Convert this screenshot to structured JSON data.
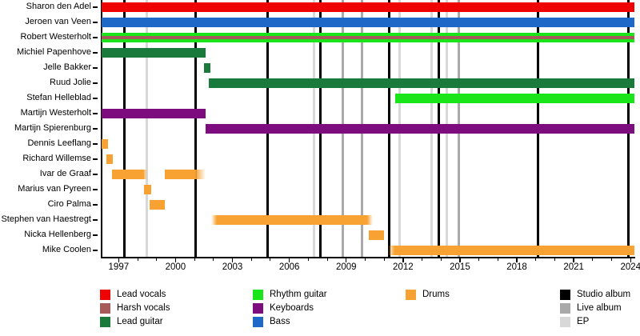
{
  "chart_data": {
    "type": "timeline",
    "description": "Band members timeline (gantt-style), members vs years with release markers",
    "x_axis": {
      "min": 1996.1,
      "max": 2024.2,
      "labeled_ticks": [
        1997,
        2000,
        2003,
        2006,
        2009,
        2012,
        2015,
        2018,
        2021,
        2024
      ],
      "minor_tick_every": 1
    },
    "role_colors": {
      "lead_vocals": "#EE0202",
      "harsh_vocals": "#A65A5A",
      "lead_guitar": "#1A7A3C",
      "rhythm_guitar": "#1AE51A",
      "keyboards": "#7D0C7E",
      "bass": "#1E68C8",
      "drums": "#F7A233"
    },
    "release_colors": {
      "studio": "#000000",
      "live": "#A9A9A9",
      "ep": "#D8D8D8"
    },
    "members": [
      {
        "name": "Sharon den Adel",
        "segments": [
          {
            "role": "lead_vocals",
            "start": 1996.1,
            "end": 2024.2
          }
        ]
      },
      {
        "name": "Jeroen van Veen",
        "segments": [
          {
            "role": "bass",
            "start": 1996.1,
            "end": 2024.2
          }
        ]
      },
      {
        "name": "Robert Westerholt",
        "segments": [
          {
            "role": "rhythm_guitar",
            "start": 1996.1,
            "end": 2024.2,
            "overlay": "harsh_vocals"
          }
        ]
      },
      {
        "name": "Michiel Papenhove",
        "segments": [
          {
            "role": "lead_guitar",
            "start": 1996.1,
            "end": 2001.6
          }
        ]
      },
      {
        "name": "Jelle Bakker",
        "segments": [
          {
            "role": "lead_guitar",
            "start": 2001.5,
            "end": 2001.85
          }
        ]
      },
      {
        "name": "Ruud Jolie",
        "segments": [
          {
            "role": "lead_guitar",
            "start": 2001.75,
            "end": 2024.2
          }
        ]
      },
      {
        "name": "Stefan Helleblad",
        "segments": [
          {
            "role": "rhythm_guitar",
            "start": 2011.6,
            "end": 2024.2
          }
        ]
      },
      {
        "name": "Martijn Westerholt",
        "segments": [
          {
            "role": "keyboards",
            "start": 1996.1,
            "end": 2001.6
          }
        ]
      },
      {
        "name": "Martijn Spierenburg",
        "segments": [
          {
            "role": "keyboards",
            "start": 2001.6,
            "end": 2024.2
          }
        ]
      },
      {
        "name": "Dennis Leeflang",
        "segments": [
          {
            "role": "drums",
            "start": 1996.1,
            "end": 1996.45
          }
        ]
      },
      {
        "name": "Richard Willemse",
        "segments": [
          {
            "role": "drums",
            "start": 1996.35,
            "end": 1996.7
          }
        ]
      },
      {
        "name": "Ivar de Graaf",
        "segments": [
          {
            "role": "drums",
            "start": 1996.65,
            "end": 1998.5,
            "fade_out": 1998.3
          },
          {
            "role": "drums",
            "start": 1999.45,
            "end": 2001.6,
            "fade_out": 2001.05
          }
        ]
      },
      {
        "name": "Marius van Pyreen",
        "segments": [
          {
            "role": "drums",
            "start": 1998.35,
            "end": 1998.7
          }
        ]
      },
      {
        "name": "Ciro Palma",
        "segments": [
          {
            "role": "drums",
            "start": 1998.65,
            "end": 1999.45
          }
        ]
      },
      {
        "name": "Stephen van Haestregt",
        "segments": [
          {
            "role": "drums",
            "start": 2001.9,
            "fade_in": 2002.2,
            "end": 2010.4,
            "fade_out": 2010.1
          }
        ]
      },
      {
        "name": "Nicka Hellenberg",
        "segments": [
          {
            "role": "drums",
            "start": 2010.2,
            "end": 2011.0
          }
        ]
      },
      {
        "name": "Mike Coolen",
        "segments": [
          {
            "role": "drums",
            "start": 2011.2,
            "fade_in": 2011.55,
            "end": 2024.2
          }
        ]
      }
    ],
    "releases": [
      {
        "type": "studio",
        "year": 1997.3
      },
      {
        "type": "ep",
        "year": 1998.5
      },
      {
        "type": "studio",
        "year": 2001.05
      },
      {
        "type": "studio",
        "year": 2004.85
      },
      {
        "type": "ep",
        "year": 2007.3
      },
      {
        "type": "studio",
        "year": 2007.65
      },
      {
        "type": "live",
        "year": 2008.8
      },
      {
        "type": "live",
        "year": 2009.85
      },
      {
        "type": "studio",
        "year": 2011.25
      },
      {
        "type": "ep",
        "year": 2011.8
      },
      {
        "type": "ep",
        "year": 2013.5
      },
      {
        "type": "studio",
        "year": 2013.9
      },
      {
        "type": "ep",
        "year": 2014.3
      },
      {
        "type": "live",
        "year": 2014.95
      },
      {
        "type": "studio",
        "year": 2019.1
      },
      {
        "type": "studio",
        "year": 2023.9
      }
    ],
    "legend": {
      "columns": [
        {
          "items": [
            {
              "label": "Lead vocals",
              "color": "#EE0202"
            },
            {
              "label": "Harsh vocals",
              "color": "#A65A5A"
            },
            {
              "label": "Lead guitar",
              "color": "#1A7A3C"
            }
          ]
        },
        {
          "items": [
            {
              "label": "Rhythm guitar",
              "color": "#1AE51A"
            },
            {
              "label": "Keyboards",
              "color": "#7D0C7E"
            },
            {
              "label": "Bass",
              "color": "#1E68C8"
            }
          ]
        },
        {
          "items": [
            {
              "label": "Drums",
              "color": "#F7A233"
            }
          ]
        },
        {
          "items": [
            {
              "label": "Studio album",
              "color": "#000000"
            },
            {
              "label": "Live album",
              "color": "#A9A9A9"
            },
            {
              "label": "EP",
              "color": "#D8D8D8"
            }
          ]
        }
      ]
    }
  }
}
